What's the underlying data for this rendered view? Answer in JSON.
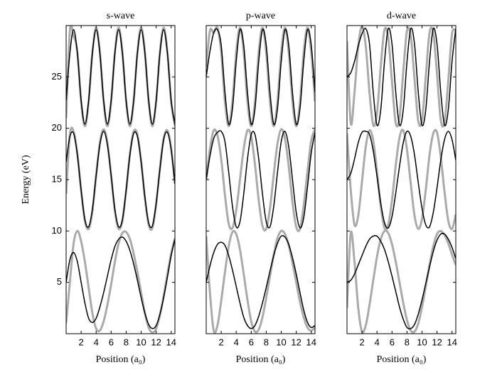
{
  "chart_data": [
    {
      "type": "line",
      "title": "s-wave",
      "y_label": "Energy (eV)",
      "x_label": "Position (a₀)",
      "x": [
        0,
        0.5,
        1,
        1.5,
        2,
        2.5,
        3,
        3.5,
        4,
        4.5,
        5,
        5.5,
        6,
        6.5,
        7,
        7.5,
        8,
        8.5,
        9,
        9.5,
        10,
        10.5,
        11,
        11.5,
        12,
        12.5,
        13,
        13.5,
        14,
        14.5
      ],
      "xlim": [
        0,
        14.5
      ],
      "ylim": [
        0,
        30
      ],
      "xticks": [
        2,
        4,
        6,
        8,
        10,
        12,
        14
      ],
      "yticks": [
        5,
        10,
        15,
        20,
        25
      ],
      "ytick_labels": true,
      "series": [
        {
          "color": "#aaaaaa",
          "linewidth": 3,
          "values": [
            1.0,
            5.0,
            8.8,
            10.0,
            9.0,
            7.0,
            4.5,
            2.0,
            0.5,
            0.3,
            1.2,
            2.8,
            4.8,
            7.0,
            8.8,
            9.8,
            9.9,
            9.2,
            7.8,
            6.0,
            4.0,
            2.0,
            0.6,
            0.1,
            0.5,
            1.8,
            3.7,
            5.8,
            7.8,
            9.3
          ]
        },
        {
          "color": "#000000",
          "linewidth": 1.5,
          "values": [
            5.0,
            7.2,
            7.9,
            7.0,
            5.0,
            3.0,
            1.5,
            1.1,
            1.5,
            2.6,
            4.0,
            5.6,
            7.2,
            8.5,
            9.2,
            9.4,
            9.0,
            8.1,
            6.8,
            5.2,
            3.5,
            2.0,
            0.9,
            0.5,
            0.8,
            1.9,
            3.5,
            5.5,
            7.6,
            9.2
          ]
        },
        {
          "color": "#aaaaaa",
          "linewidth": 3,
          "values": [
            13.6,
            19.4,
            19.7,
            17.5,
            13.9,
            11.0,
            10.2,
            11.9,
            15.4,
            18.6,
            19.9,
            18.6,
            15.4,
            11.9,
            10.2,
            11.0,
            13.9,
            17.5,
            19.7,
            19.4,
            16.8,
            13.2,
            10.6,
            10.3,
            12.6,
            16.1,
            19.0,
            19.8,
            18.1,
            14.6
          ]
        },
        {
          "color": "#000000",
          "linewidth": 1.5,
          "values": [
            16.7,
            19.2,
            19.5,
            17.4,
            14.0,
            11.1,
            10.4,
            12.1,
            15.4,
            18.4,
            19.7,
            18.4,
            15.4,
            12.1,
            10.4,
            11.1,
            14.0,
            17.4,
            19.5,
            19.2,
            16.7,
            13.3,
            10.8,
            10.5,
            12.7,
            16.0,
            18.9,
            19.6,
            17.9,
            14.6
          ]
        },
        {
          "color": "#aaaaaa",
          "linewidth": 3,
          "values": [
            21.0,
            29.5,
            29.0,
            27.4,
            22.6,
            20.2,
            22.6,
            27.4,
            29.8,
            27.4,
            22.6,
            20.2,
            22.6,
            27.4,
            29.8,
            27.4,
            22.6,
            20.2,
            22.6,
            27.4,
            29.8,
            27.4,
            22.6,
            20.2,
            22.6,
            27.4,
            29.8,
            27.4,
            22.6,
            20.2
          ]
        },
        {
          "color": "#000000",
          "linewidth": 1.5,
          "values": [
            22.7,
            27.3,
            29.6,
            27.3,
            22.7,
            20.4,
            22.7,
            27.3,
            29.6,
            27.3,
            22.7,
            20.4,
            22.7,
            27.3,
            29.6,
            27.3,
            22.7,
            20.4,
            22.7,
            27.3,
            29.6,
            27.3,
            22.7,
            20.4,
            22.7,
            27.3,
            29.6,
            27.3,
            22.7,
            20.4
          ]
        }
      ]
    },
    {
      "type": "line",
      "title": "p-wave",
      "x_label": "Position (a₀)",
      "x": [
        0,
        0.5,
        1,
        1.5,
        2,
        2.5,
        3,
        3.5,
        4,
        4.5,
        5,
        5.5,
        6,
        6.5,
        7,
        7.5,
        8,
        8.5,
        9,
        9.5,
        10,
        10.5,
        11,
        11.5,
        12,
        12.5,
        13,
        13.5,
        14,
        14.5
      ],
      "xlim": [
        0,
        14.5
      ],
      "ylim": [
        0,
        30
      ],
      "xticks": [
        2,
        4,
        6,
        8,
        10,
        12,
        14
      ],
      "yticks": [
        5,
        10,
        15,
        20,
        25
      ],
      "ytick_labels": false,
      "series": [
        {
          "color": "#aaaaaa",
          "linewidth": 3,
          "values": [
            9.5,
            4.0,
            0.3,
            0.8,
            3.2,
            6.0,
            8.5,
            9.9,
            9.7,
            8.2,
            5.8,
            3.3,
            1.2,
            0.2,
            0.4,
            1.6,
            3.5,
            5.6,
            7.7,
            9.3,
            10.0,
            9.7,
            8.6,
            6.9,
            5.0,
            3.1,
            1.6,
            0.6,
            0.3,
            0.6
          ]
        },
        {
          "color": "#000000",
          "linewidth": 1.5,
          "values": [
            5.0,
            6.6,
            7.9,
            8.7,
            8.9,
            8.6,
            7.6,
            6.2,
            4.6,
            3.0,
            1.6,
            0.8,
            0.5,
            0.8,
            1.7,
            3.0,
            4.5,
            6.1,
            7.6,
            8.8,
            9.5,
            9.4,
            8.7,
            7.4,
            5.8,
            4.0,
            2.3,
            1.1,
            0.6,
            0.8
          ]
        },
        {
          "color": "#aaaaaa",
          "linewidth": 3,
          "values": [
            15.0,
            18.0,
            19.8,
            19.3,
            17.0,
            13.5,
            10.7,
            10.3,
            12.0,
            15.0,
            18.0,
            19.8,
            19.2,
            16.5,
            13.0,
            10.5,
            10.2,
            12.2,
            15.5,
            18.5,
            19.9,
            19.0,
            16.3,
            12.8,
            10.4,
            10.2,
            12.5,
            15.8,
            18.8,
            19.9
          ]
        },
        {
          "color": "#000000",
          "linewidth": 1.5,
          "values": [
            15.0,
            17.3,
            19.0,
            19.6,
            19.7,
            18.7,
            15.7,
            12.4,
            10.4,
            10.9,
            13.6,
            17.0,
            19.4,
            19.4,
            17.0,
            13.6,
            10.9,
            10.4,
            12.4,
            15.7,
            18.7,
            19.7,
            18.2,
            15.0,
            11.8,
            10.3,
            11.3,
            14.3,
            17.6,
            19.6
          ]
        },
        {
          "color": "#aaaaaa",
          "linewidth": 3,
          "values": [
            26.0,
            29.5,
            29.3,
            29.8,
            27.4,
            22.6,
            20.2,
            22.6,
            27.4,
            29.8,
            27.4,
            22.6,
            20.2,
            22.6,
            27.4,
            29.8,
            27.4,
            22.6,
            20.2,
            22.6,
            27.4,
            29.8,
            27.4,
            22.6,
            20.2,
            22.6,
            27.4,
            29.8,
            27.4,
            22.6
          ]
        },
        {
          "color": "#000000",
          "linewidth": 1.5,
          "values": [
            25.0,
            27.5,
            29.3,
            29.6,
            28.1,
            23.5,
            20.4,
            21.9,
            26.5,
            29.6,
            28.1,
            23.5,
            20.4,
            21.9,
            26.5,
            29.6,
            28.1,
            23.5,
            20.4,
            21.9,
            26.5,
            29.6,
            28.1,
            23.5,
            20.4,
            21.9,
            26.5,
            29.6,
            28.1,
            23.5
          ]
        }
      ]
    },
    {
      "type": "line",
      "title": "d-wave",
      "x_label": "Position (a₀)",
      "x": [
        0,
        0.5,
        1,
        1.5,
        2,
        2.5,
        3,
        3.5,
        4,
        4.5,
        5,
        5.5,
        6,
        6.5,
        7,
        7.5,
        8,
        8.5,
        9,
        9.5,
        10,
        10.5,
        11,
        11.5,
        12,
        12.5,
        13,
        13.5,
        14,
        14.5
      ],
      "xlim": [
        0,
        14.5
      ],
      "ylim": [
        0,
        30
      ],
      "xticks": [
        2,
        4,
        6,
        8,
        10,
        12,
        14
      ],
      "yticks": [
        5,
        10,
        15,
        20,
        25
      ],
      "ytick_labels": false,
      "series": [
        {
          "color": "#aaaaaa",
          "linewidth": 3,
          "values": [
            2.5,
            9.8,
            7.0,
            2.5,
            0.2,
            0.8,
            2.8,
            5.2,
            7.5,
            9.2,
            10.0,
            9.8,
            8.7,
            7.0,
            5.0,
            3.0,
            1.3,
            0.3,
            0.2,
            1.0,
            2.6,
            4.6,
            6.7,
            8.5,
            9.7,
            10.0,
            9.6,
            8.8,
            7.7,
            6.7
          ]
        },
        {
          "color": "#000000",
          "linewidth": 1.5,
          "values": [
            5.0,
            5.2,
            5.8,
            6.7,
            7.6,
            8.5,
            9.2,
            9.5,
            9.5,
            9.0,
            8.2,
            7.0,
            5.6,
            4.1,
            2.6,
            1.4,
            0.6,
            0.5,
            0.9,
            1.9,
            3.3,
            4.9,
            6.5,
            8.0,
            9.1,
            9.7,
            9.7,
            9.2,
            8.4,
            7.3
          ]
        },
        {
          "color": "#aaaaaa",
          "linewidth": 3,
          "values": [
            19.5,
            14.0,
            10.6,
            11.5,
            14.8,
            18.2,
            19.8,
            18.8,
            15.8,
            12.4,
            10.3,
            10.6,
            13.0,
            16.4,
            19.1,
            19.8,
            17.9,
            14.6,
            11.5,
            10.2,
            11.2,
            14.0,
            17.4,
            19.5,
            19.6,
            17.2,
            13.8,
            11.0,
            10.2,
            11.6
          ]
        },
        {
          "color": "#000000",
          "linewidth": 1.5,
          "values": [
            15.0,
            15.6,
            17.0,
            18.6,
            19.6,
            19.7,
            19.4,
            17.8,
            15.3,
            12.7,
            10.8,
            10.3,
            11.4,
            13.7,
            16.3,
            18.6,
            19.7,
            19.2,
            17.4,
            14.7,
            12.2,
            10.6,
            10.4,
            11.8,
            14.2,
            16.9,
            18.9,
            19.7,
            18.9,
            16.9
          ]
        },
        {
          "color": "#aaaaaa",
          "linewidth": 3,
          "values": [
            28.5,
            20.5,
            23.5,
            28.0,
            29.9,
            28.0,
            23.5,
            20.3,
            21.5,
            26.0,
            29.6,
            28.8,
            24.5,
            20.5,
            21.0,
            25.5,
            29.5,
            29.0,
            24.8,
            20.7,
            20.8,
            25.0,
            29.3,
            29.3,
            25.3,
            20.8,
            20.6,
            24.6,
            29.2,
            29.5
          ]
        },
        {
          "color": "#000000",
          "linewidth": 1.5,
          "values": [
            25.0,
            25.4,
            26.5,
            28.0,
            29.2,
            29.7,
            28.2,
            23.5,
            20.3,
            21.8,
            26.5,
            29.7,
            28.2,
            23.5,
            20.3,
            21.8,
            26.5,
            29.7,
            28.2,
            23.5,
            20.3,
            21.8,
            26.5,
            29.7,
            28.2,
            23.5,
            20.3,
            21.8,
            26.5,
            29.7
          ]
        }
      ]
    }
  ]
}
